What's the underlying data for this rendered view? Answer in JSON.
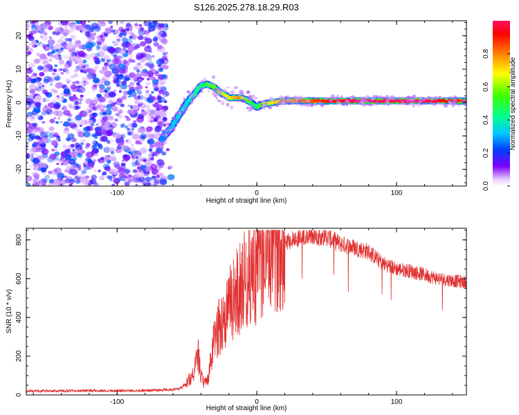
{
  "title": "S126.2025.278.18.29.R03",
  "chart_data": [
    {
      "type": "heatmap",
      "name": "spectrogram",
      "xlabel": "Height of straight line (km)",
      "ylabel": "Frequency (Hz)",
      "xlim": [
        -165,
        150
      ],
      "ylim": [
        -25,
        24.5
      ],
      "xticks": [
        -100,
        0,
        100
      ],
      "yticks": [
        -20,
        -10,
        0,
        10,
        20
      ],
      "noise_region_x": [
        -165,
        -65
      ],
      "ridge": {
        "x": [
          -68,
          -62,
          -56,
          -50,
          -45,
          -40,
          -36,
          -32,
          -28,
          -24,
          -20,
          -16,
          -12,
          -8,
          -4,
          0,
          4,
          10,
          20,
          30,
          40,
          50,
          60,
          70,
          80,
          90,
          100,
          110,
          120,
          130,
          140,
          150
        ],
        "y": [
          -11,
          -8,
          -4,
          0,
          2.5,
          5,
          5.5,
          5,
          3.5,
          2.5,
          1.5,
          1.5,
          1.5,
          1,
          0,
          -1.5,
          -0.5,
          0,
          0.5,
          0.5,
          0.5,
          0.5,
          0.5,
          0.5,
          0.5,
          0.5,
          0.5,
          0.5,
          0.5,
          0.5,
          0.5,
          0.5
        ],
        "amplitude": [
          0.25,
          0.3,
          0.35,
          0.35,
          0.4,
          0.45,
          0.5,
          0.55,
          0.6,
          0.65,
          0.7,
          0.75,
          0.8,
          0.6,
          0.5,
          0.45,
          0.6,
          0.7,
          0.75,
          0.8,
          0.85,
          0.9,
          0.95,
          1.0,
          1.0,
          1.0,
          1.0,
          1.0,
          1.0,
          0.95,
          0.9,
          0.85
        ]
      },
      "colorbar": {
        "label": "Normalized spectral amplitude",
        "range": [
          0,
          1
        ],
        "ticks": [
          0.0,
          0.2,
          0.4,
          0.6,
          0.8
        ],
        "tick_labels": [
          "0.0",
          "0.2",
          "0.4",
          "0.6",
          "0.8"
        ]
      }
    },
    {
      "type": "line",
      "name": "snr",
      "xlabel": "Height of straight line (km)",
      "ylabel": "SNR (10 * v/v)",
      "xlim": [
        -165,
        150
      ],
      "ylim": [
        0,
        860
      ],
      "xticks": [
        -100,
        0,
        100
      ],
      "yticks": [
        0,
        200,
        400,
        600,
        800
      ],
      "color": "#e03030",
      "envelope": {
        "x": [
          -165,
          -150,
          -120,
          -90,
          -70,
          -55,
          -50,
          -45,
          -42,
          -40,
          -38,
          -35,
          -30,
          -25,
          -20,
          -15,
          -10,
          -5,
          0,
          5,
          10,
          20,
          30,
          40,
          50,
          60,
          70,
          80,
          90,
          100,
          110,
          120,
          130,
          140,
          150
        ],
        "y": [
          20,
          20,
          22,
          22,
          25,
          30,
          60,
          120,
          200,
          100,
          60,
          80,
          300,
          380,
          450,
          520,
          580,
          620,
          680,
          720,
          760,
          790,
          810,
          820,
          815,
          780,
          760,
          740,
          680,
          650,
          640,
          620,
          600,
          590,
          580
        ]
      }
    }
  ]
}
